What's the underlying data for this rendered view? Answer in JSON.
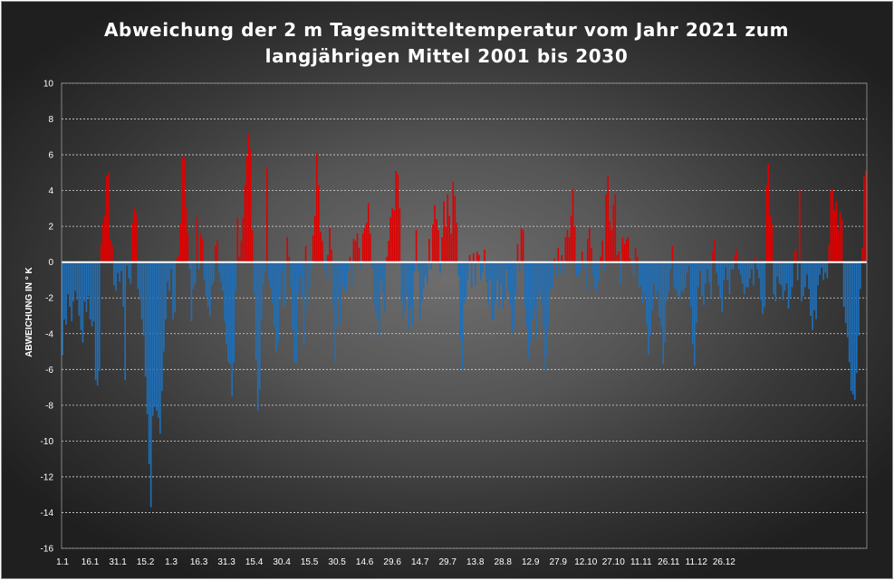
{
  "chart_data": {
    "type": "bar",
    "title_lines": [
      "Abweichung der 2 m Tagesmitteltemperatur  vom Jahr 2021 zum",
      "langjährigen Mittel 2001 bis 2030"
    ],
    "ylabel": "ABWEICHUNG IN ° K",
    "xlabel": "",
    "ylim": [
      -16,
      10
    ],
    "yticks": [
      10,
      8,
      6,
      4,
      2,
      0,
      -2,
      -4,
      -6,
      -8,
      -10,
      -12,
      -14,
      -16
    ],
    "x_tick_labels": [
      "1.1",
      "16.1",
      "31.1",
      "15.2",
      "1.3",
      "16.3",
      "31.3",
      "15.4",
      "30.4",
      "15.5",
      "30.5",
      "14.6",
      "29.6",
      "14.7",
      "29.7",
      "13.8",
      "28.8",
      "12.9",
      "27.9",
      "12.10",
      "27.10",
      "11.11",
      "26.11",
      "11.12",
      "26.12"
    ],
    "x_tick_day_index": [
      0,
      15,
      30,
      45,
      59,
      74,
      89,
      104,
      119,
      134,
      149,
      164,
      179,
      194,
      209,
      224,
      239,
      254,
      269,
      284,
      299,
      314,
      329,
      344,
      359
    ],
    "grid": true,
    "legend": "none",
    "colors": {
      "positive": "#e00000",
      "negative": "#1f6fb8",
      "zero_line": "#ffffff",
      "text": "#ffffff"
    },
    "values": [
      -5.2,
      -3.2,
      -3.5,
      -1.8,
      -2.5,
      -3.3,
      -2.2,
      -1.6,
      -2.1,
      -3.0,
      -3.8,
      -4.5,
      -2.2,
      -2.8,
      -1.9,
      -3.2,
      -3.6,
      -3.3,
      -6.6,
      -6.9,
      -6.1,
      1.0,
      2.2,
      2.6,
      4.8,
      5.0,
      1.3,
      0.9,
      -1.3,
      -1.6,
      -0.6,
      -1.1,
      -0.5,
      -2.5,
      -6.6,
      -0.2,
      -0.9,
      -1.2,
      2.2,
      3.0,
      2.7,
      -1.5,
      -2.1,
      -3.2,
      -4.1,
      -6.4,
      -8.5,
      -11.3,
      -13.7,
      -8.6,
      -8.1,
      -8.3,
      -8.7,
      -9.6,
      -7.2,
      -5.0,
      -3.2,
      -1.1,
      -1.6,
      -0.4,
      -3.2,
      -2.8,
      0.2,
      0.4,
      2.2,
      5.8,
      5.9,
      3.0,
      1.6,
      -0.4,
      -3.3,
      -1.5,
      -1.2,
      2.5,
      -0.4,
      1.6,
      1.3,
      -1.0,
      -1.9,
      -2.5,
      -3.0,
      -1.3,
      -1.1,
      0.9,
      1.2,
      -0.6,
      -1.1,
      -1.6,
      -3.3,
      -4.6,
      -5.6,
      -5.7,
      -7.5,
      -5.6,
      -1.6,
      2.5,
      0.3,
      1.2,
      2.5,
      4.3,
      5.9,
      7.2,
      6.3,
      1.8,
      -1.8,
      -5.5,
      -8.3,
      -7.1,
      -3.2,
      -1.3,
      -0.5,
      5.3,
      -0.9,
      -1.4,
      -2.3,
      -3.6,
      -5.0,
      -4.5,
      -2.0,
      -0.5,
      -2.5,
      -2.3,
      1.4,
      0.3,
      -1.4,
      -3.8,
      -5.6,
      -5.6,
      -1.7,
      -0.8,
      -2.0,
      -4.6,
      0.9,
      -2.6,
      -1.4,
      -0.4,
      1.5,
      2.6,
      6.1,
      4.3,
      1.7,
      1.2,
      -0.4,
      -0.9,
      0.4,
      1.9,
      0.7,
      -2.4,
      -5.6,
      -3.7,
      -2.0,
      -3.4,
      -1.3,
      -1.5,
      -1.7,
      -0.5,
      0.3,
      -1.3,
      1.3,
      1.2,
      1.6,
      0.8,
      -0.4,
      1.6,
      1.9,
      2.2,
      3.3,
      1.6,
      -0.4,
      -2.4,
      -3.0,
      -3.2,
      -4.2,
      -1.0,
      -1.7,
      -2.8,
      0.3,
      1.2,
      2.5,
      3.0,
      2.9,
      5.1,
      4.9,
      3.0,
      -2.2,
      -3.1,
      -2.7,
      -1.9,
      -3.8,
      -2.5,
      -3.5,
      -0.5,
      1.8,
      -0.5,
      -3.2,
      -2.2,
      -1.5,
      -0.8,
      -1.2,
      1.3,
      -0.4,
      2.1,
      3.2,
      2.4,
      1.8,
      -0.6,
      1.4,
      3.4,
      2.0,
      3.8,
      2.6,
      1.6,
      4.5,
      3.7,
      2.2,
      -0.8,
      -4.3,
      -6.0,
      -2.3,
      -2.0,
      -1.0,
      0.4,
      -1.4,
      0.5,
      -1.3,
      0.6,
      0.4,
      -1.0,
      -0.6,
      0.7,
      -1.1,
      -2.4,
      -1.0,
      -3.2,
      -3.2,
      -2.2,
      -1.0,
      -2.6,
      -1.3,
      -2.6,
      -2.1,
      -0.4,
      -1.6,
      -2.4,
      -4.0,
      -3.7,
      -1.8,
      1.0,
      -0.5,
      1.9,
      1.8,
      -2.5,
      -3.6,
      -5.4,
      -4.5,
      -3.2,
      -2.6,
      -4.2,
      -2.0,
      -1.7,
      -2.4,
      -3.6,
      -6.1,
      -5.3,
      -3.6,
      -1.6,
      -1.4,
      0.2,
      -0.8,
      0.8,
      -0.6,
      0.4,
      -0.6,
      1.4,
      1.8,
      1.4,
      2.6,
      4.1,
      2.0,
      -0.8,
      -0.8,
      -0.5,
      0.6,
      -0.3,
      -1.6,
      1.3,
      1.9,
      0.8,
      -0.7,
      -1.4,
      -1.7,
      -1.1,
      0.3,
      1.2,
      -0.5,
      3.8,
      4.8,
      2.3,
      1.8,
      3.2,
      3.8,
      0.4,
      0.6,
      -1.2,
      1.4,
      1.0,
      1.3,
      1.4,
      0.2,
      -0.2,
      -0.8,
      0.8,
      0.3,
      -1.4,
      -1.3,
      -2.3,
      -1.8,
      -3.5,
      -5.2,
      -4.1,
      -2.7,
      -1.2,
      -2.0,
      -1.6,
      -3.1,
      -3.6,
      -5.7,
      -4.5,
      -2.2,
      -1.7,
      -0.4,
      0.9,
      -1.4,
      -1.6,
      -1.9,
      -2.1,
      -1.6,
      -1.7,
      -1.4,
      -0.6,
      -0.2,
      -2.5,
      -4.6,
      -5.8,
      -3.4,
      -1.4,
      -0.5,
      -1.9,
      -2.4,
      -1.2,
      -0.4,
      -1.1,
      -2.0,
      0.6,
      1.3,
      -0.6,
      -1.3,
      -2.0,
      -2.8,
      -1.0,
      -0.3,
      -1.0,
      -1.8,
      -0.4,
      -0.4,
      0.4,
      0.7,
      -0.4,
      -0.7,
      -1.2,
      -1.8,
      -1.4,
      -1.4,
      -0.9,
      -0.4,
      -1.3,
      0.3,
      -0.4,
      -0.9,
      -2.1,
      -2.9,
      -2.5,
      4.3,
      5.5,
      2.6,
      2.1,
      -1.8,
      -2.2,
      -0.8,
      -1.2,
      -1.3,
      -2.1,
      -1.6,
      -1.2,
      -2.6,
      -2.0,
      -1.4,
      0.6,
      0.7,
      -1.0,
      4.1,
      -2.2,
      -1.9,
      -1.4,
      -0.7,
      -1.5,
      -3.0,
      -3.8,
      -2.7,
      -3.2,
      -1.3,
      -0.7,
      -0.3,
      -1.0,
      -0.6,
      -0.9,
      1.0,
      4.0,
      4.1,
      2.9,
      3.4,
      1.8,
      2.8,
      2.4,
      -2.5,
      -3.4,
      -4.2,
      -5.6,
      -7.2,
      -7.4,
      -7.7,
      -6.2,
      -4.1,
      -1.5,
      0.8,
      4.8,
      5.1
    ]
  }
}
